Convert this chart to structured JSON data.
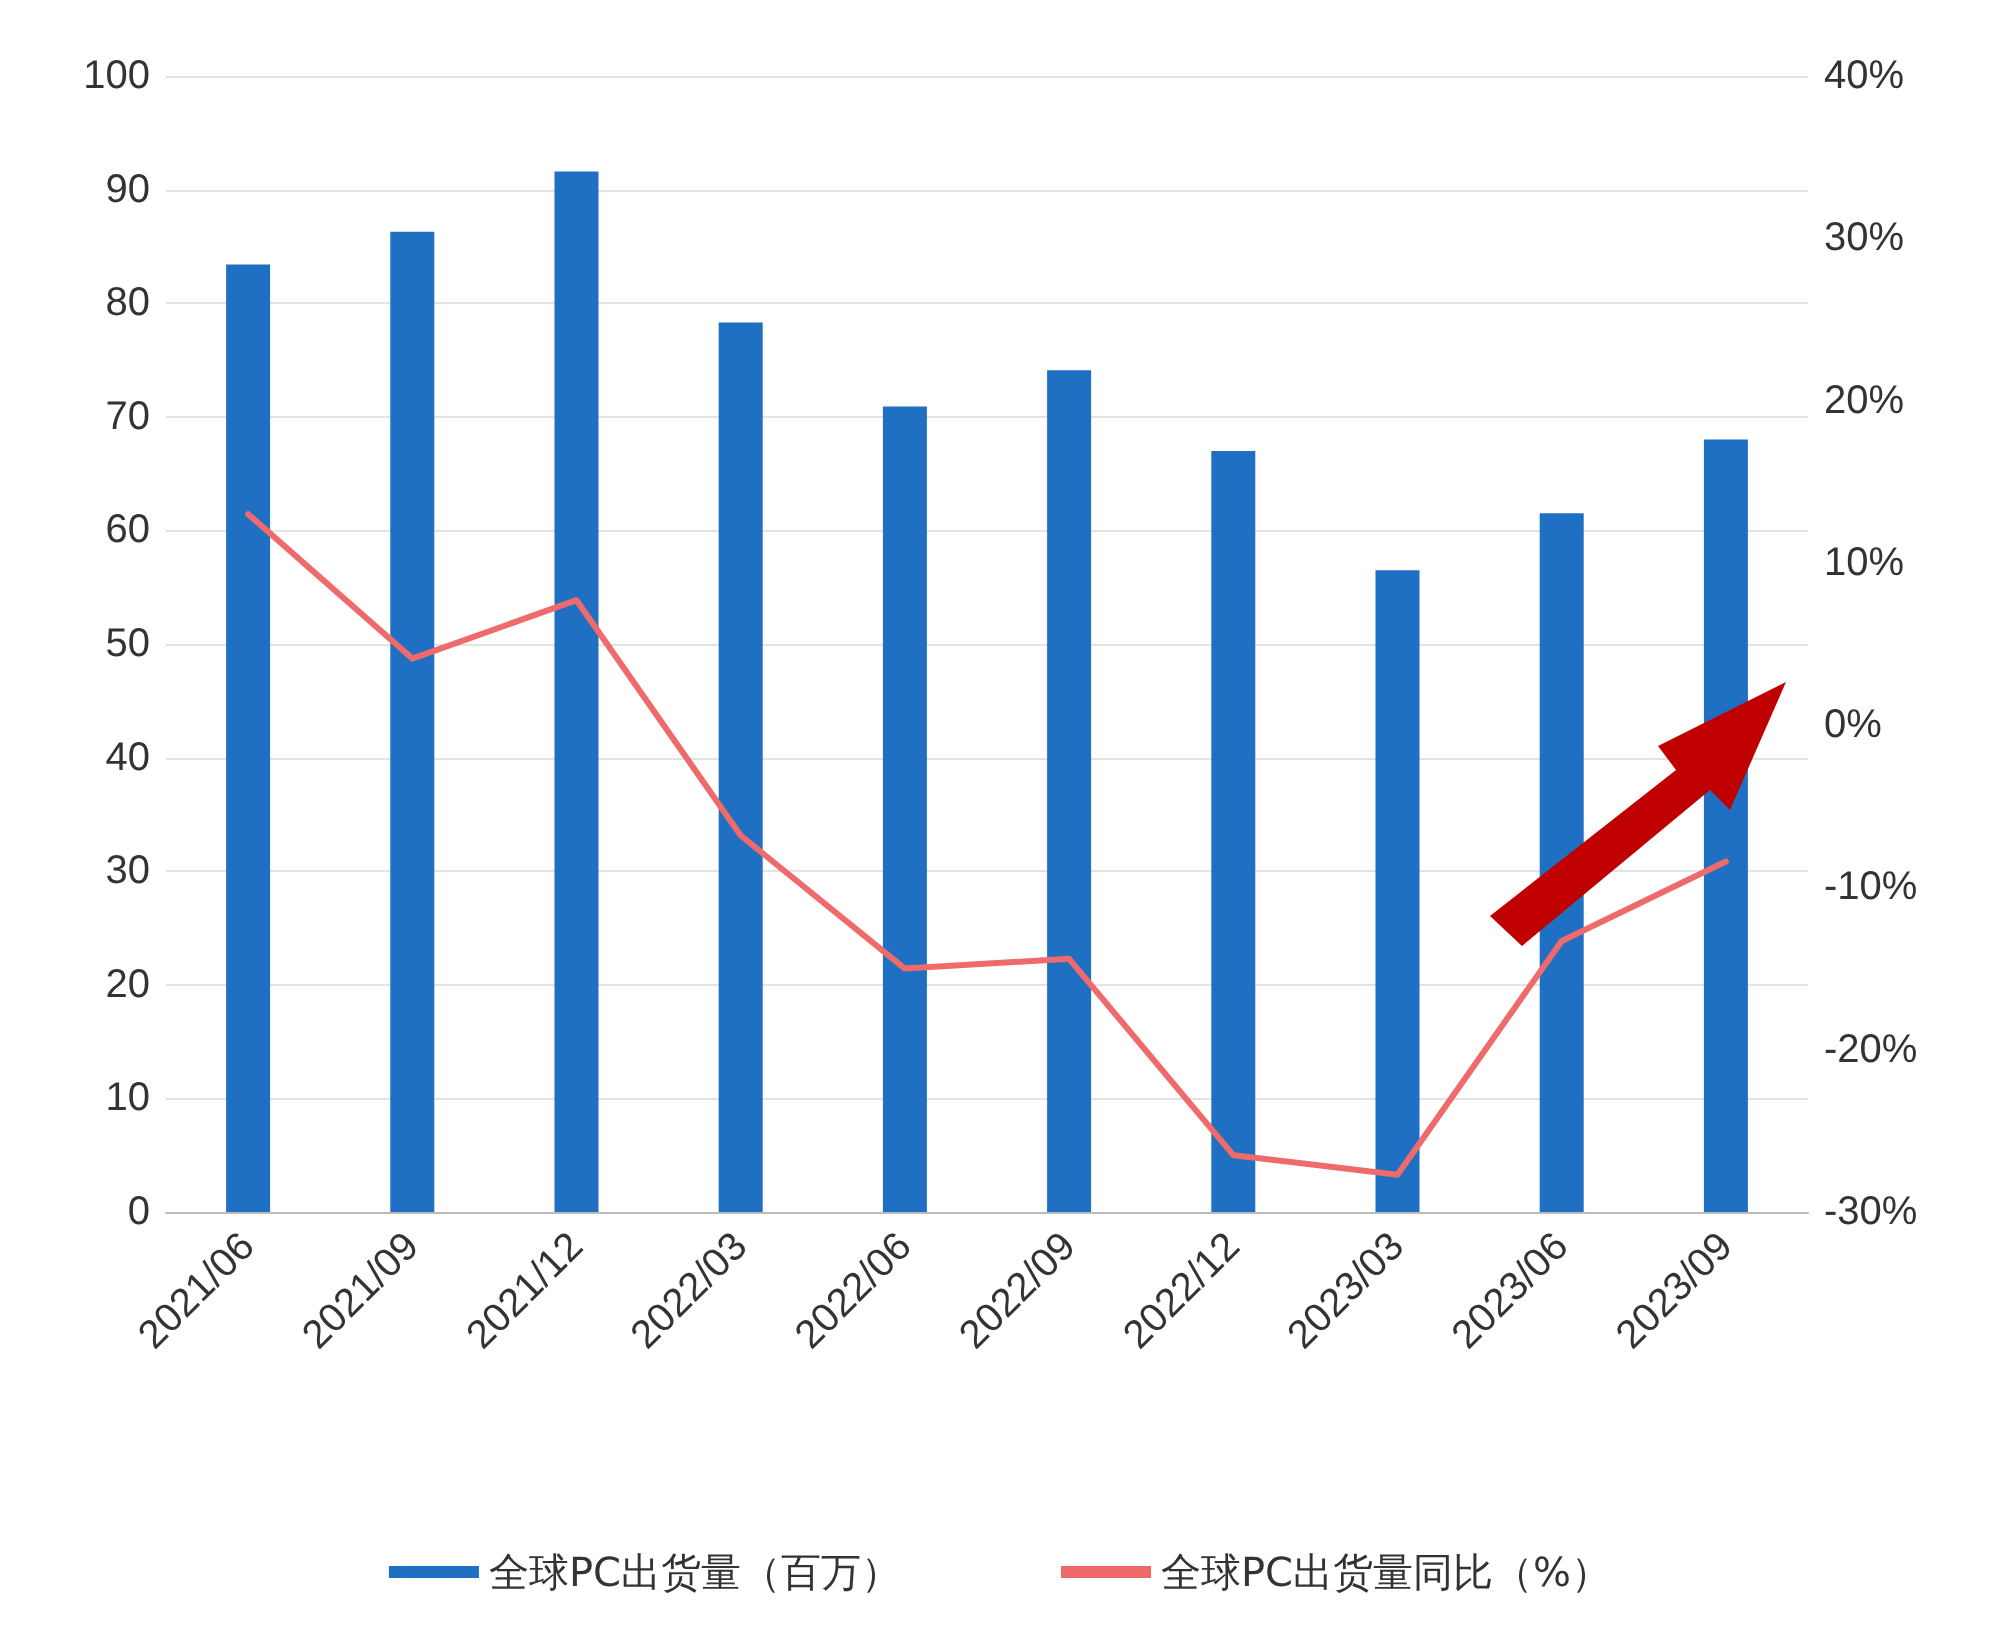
{
  "chart_data": {
    "type": "bar",
    "categories": [
      "2021/06",
      "2021/09",
      "2021/12",
      "2022/03",
      "2022/06",
      "2022/09",
      "2022/12",
      "2023/03",
      "2023/06",
      "2023/09"
    ],
    "series": [
      {
        "name": "全球PC出货量（百万）",
        "color": "#1f6fc2",
        "values": [
          83.4,
          86.3,
          91.6,
          78.3,
          70.9,
          74.1,
          67,
          56.5,
          61.5,
          68
        ]
      },
      {
        "name": "全球PC出货量同比（%）",
        "type": "line",
        "axis": "y2",
        "color": "#ef6a6a",
        "values": [
          13,
          4.1,
          7.7,
          -6.8,
          -15,
          -14.4,
          -26.5,
          -27.7,
          -13.3,
          -8.4
        ]
      }
    ],
    "ylim": [
      0,
      100
    ],
    "yticks": [
      0,
      10,
      20,
      30,
      40,
      50,
      60,
      70,
      80,
      90,
      100
    ],
    "y2lim": [
      -30,
      40
    ],
    "y2ticks": [
      {
        "value": -30,
        "label": "-30%"
      },
      {
        "value": -20,
        "label": "-20%"
      },
      {
        "value": -10,
        "label": "-10%"
      },
      {
        "value": 0,
        "label": "0%"
      },
      {
        "value": 10,
        "label": "10%"
      },
      {
        "value": 20,
        "label": "20%"
      },
      {
        "value": 30,
        "label": "30%"
      },
      {
        "value": 40,
        "label": "40%"
      }
    ],
    "grid": "y",
    "legend": "bottom",
    "marker": "none",
    "line_style": "solid"
  }
}
